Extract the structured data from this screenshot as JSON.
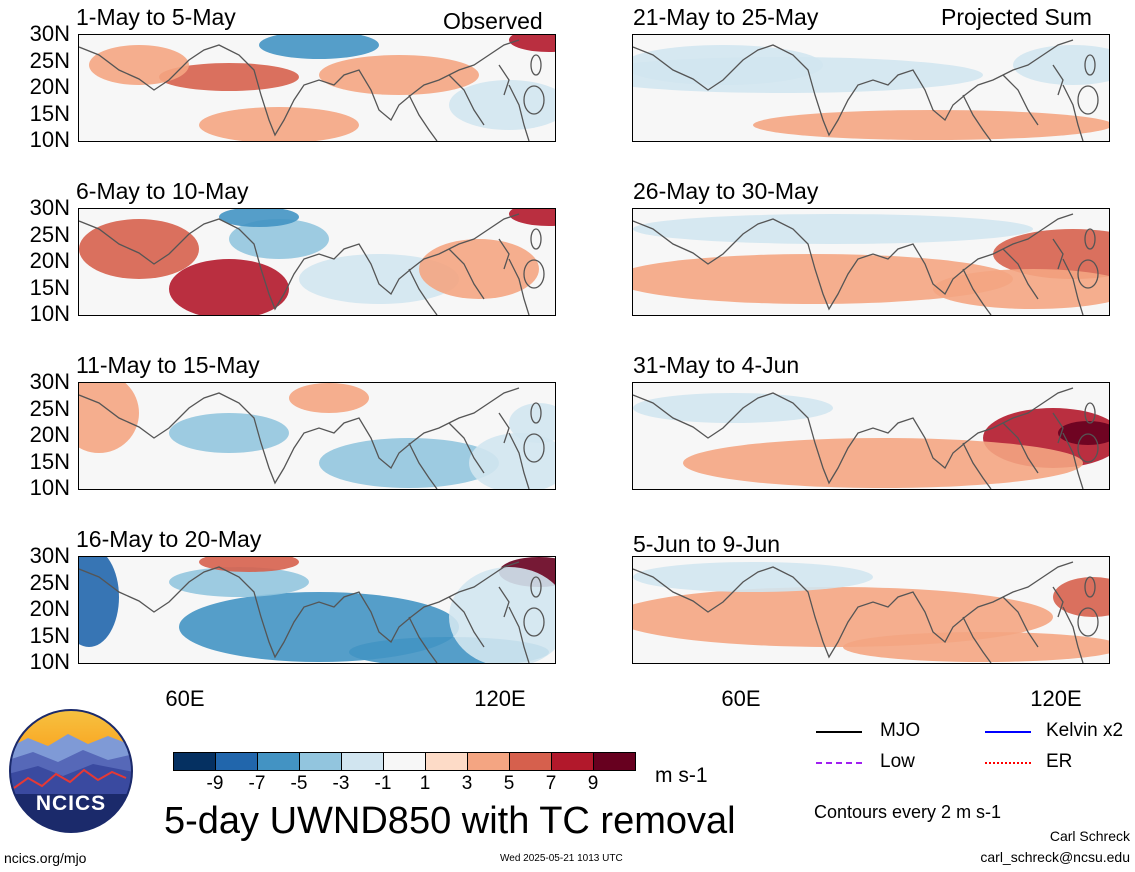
{
  "labels": {
    "observed": "Observed",
    "projected": "Projected Sum",
    "units": "m s-1",
    "main_title": "5-day UWND850 with TC removal",
    "contours": "Contours every 2 m s-1",
    "author": "Carl Schreck",
    "email": "carl_schreck@ncsu.edu",
    "url": "ncics.org/mjo",
    "timestamp": "Wed 2025-05-21 1013 UTC",
    "logo_text": "NCICS"
  },
  "panels_left": [
    {
      "title": "1-May to 5-May"
    },
    {
      "title": "6-May to 10-May"
    },
    {
      "title": "11-May to 15-May"
    },
    {
      "title": "16-May to 20-May"
    }
  ],
  "panels_right": [
    {
      "title": "21-May to 25-May"
    },
    {
      "title": "26-May to 30-May"
    },
    {
      "title": "31-May to 4-Jun"
    },
    {
      "title": "5-Jun to 9-Jun"
    }
  ],
  "lat_ticks": [
    "30N",
    "25N",
    "20N",
    "15N",
    "10N"
  ],
  "lon_ticks": [
    "60E",
    "120E"
  ],
  "colorbar": {
    "ticks": [
      "-9",
      "-7",
      "-5",
      "-3",
      "-1",
      "1",
      "3",
      "5",
      "7",
      "9"
    ],
    "colors": [
      "#053061",
      "#2166ac",
      "#4393c3",
      "#92c5de",
      "#d1e5f0",
      "#f7f7f7",
      "#fddbc7",
      "#f4a582",
      "#d6604d",
      "#b2182b",
      "#67001f"
    ]
  },
  "legend": [
    {
      "label": "MJO",
      "color": "#000000"
    },
    {
      "label": "Kelvin x2",
      "color": "#0000ff"
    },
    {
      "label": "Low",
      "color": "#a020f0"
    },
    {
      "label": "ER",
      "color": "#ff0000"
    }
  ]
}
